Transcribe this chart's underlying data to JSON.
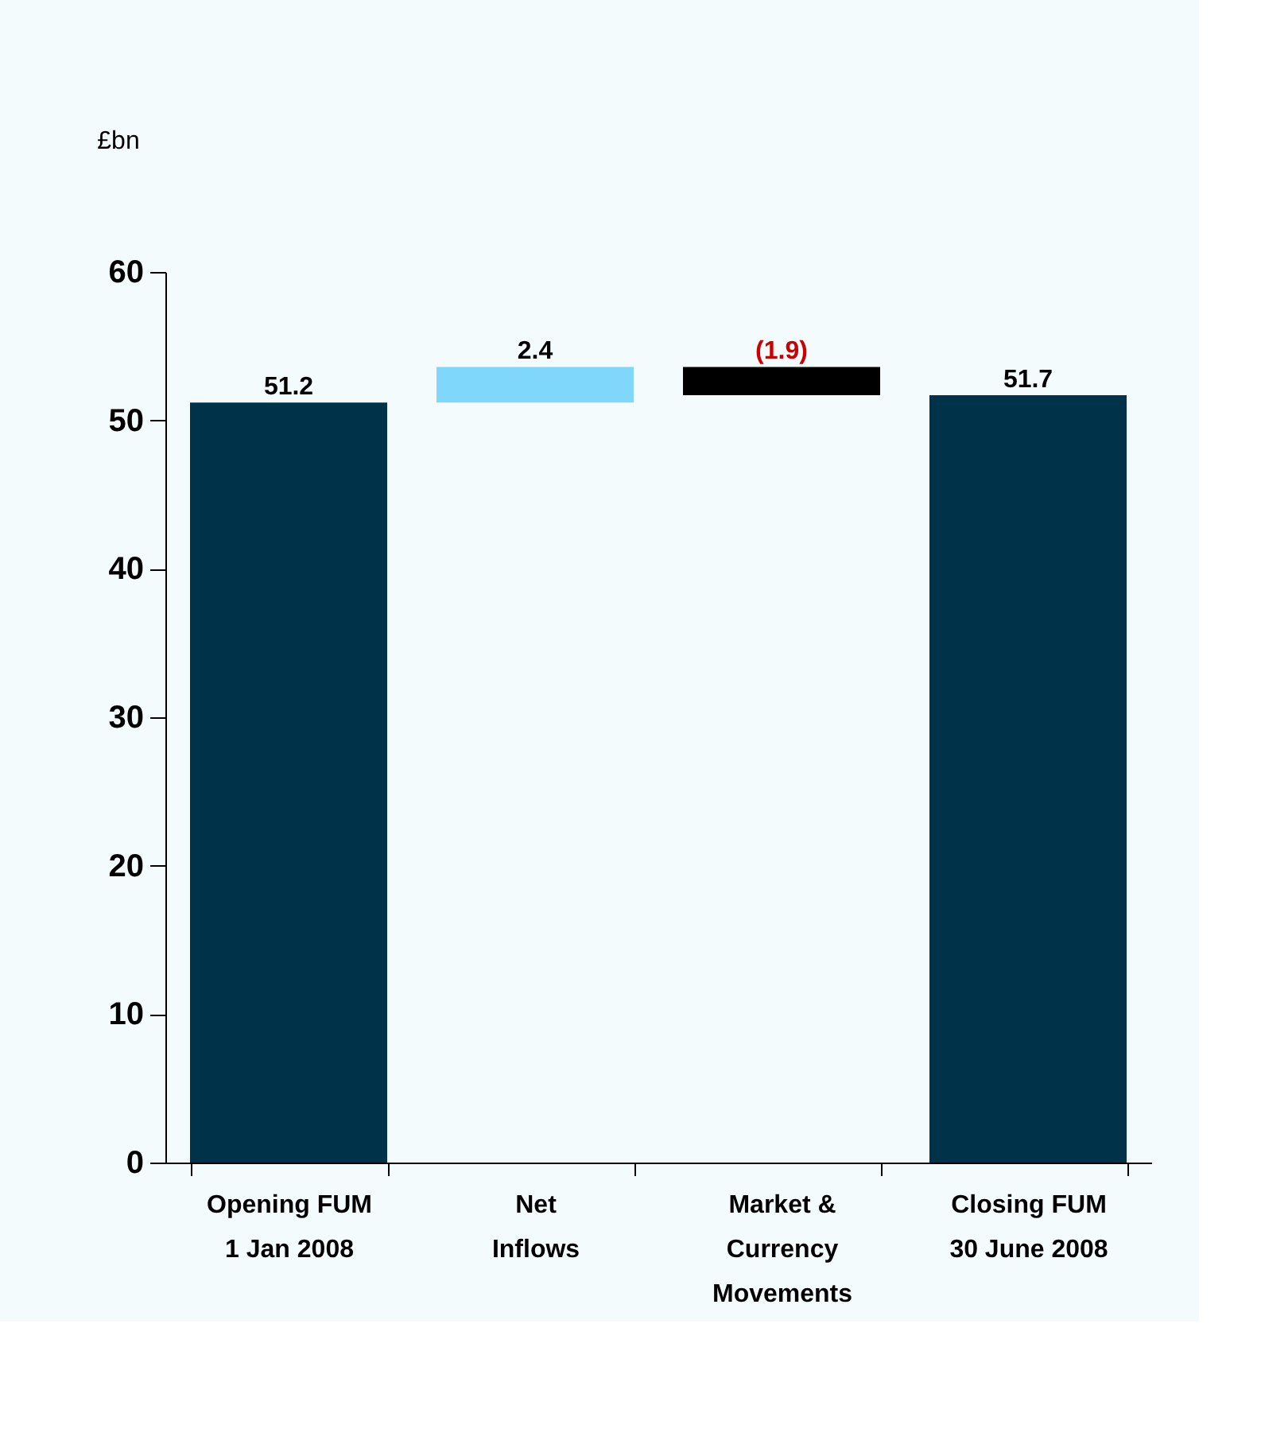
{
  "chart_data": {
    "type": "bar",
    "ylabel": "£bn",
    "categories": [
      "Opening FUM\n1 Jan 2008",
      "Net\nInflows",
      "Market &\nCurrency\nMovements",
      "Closing FUM\n30 June 2008"
    ],
    "values": [
      51.2,
      2.4,
      -1.9,
      51.7
    ],
    "base": [
      0,
      51.2,
      53.6,
      0
    ],
    "colors": [
      "#003349",
      "#7fd8fb",
      "#000000",
      "#003349"
    ],
    "value_labels": [
      "51.2",
      "2.4",
      "(1.9)",
      "51.7"
    ],
    "ylim": [
      0,
      60
    ],
    "yticks": [
      0,
      10,
      20,
      30,
      40,
      50,
      60
    ],
    "grid": false
  }
}
